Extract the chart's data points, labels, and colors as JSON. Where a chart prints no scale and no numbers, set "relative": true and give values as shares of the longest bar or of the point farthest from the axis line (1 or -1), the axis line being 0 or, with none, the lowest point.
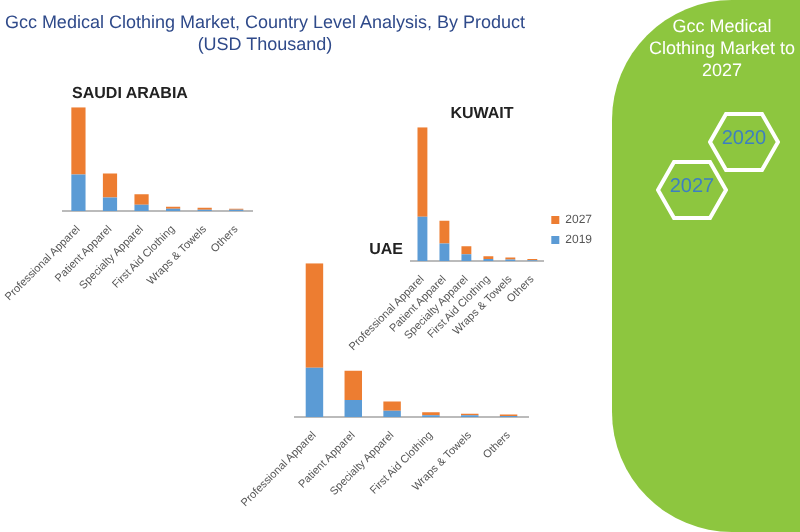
{
  "chart_data": [
    {
      "type": "other",
      "title": "Gcc Medical Clothing Market, Country Level Analysis, By Product (USD Thousand)"
    },
    {
      "type": "bar",
      "title": "SAUDI ARABIA",
      "relative": true,
      "stacked": true,
      "categories": [
        "Professional Apparel",
        "Patient Apparel",
        "Specialty Apparel",
        "First Aid Clothing",
        "Wraps & Towels",
        "Others"
      ],
      "series": [
        {
          "color": "#5b9bd5",
          "values": [
            0.35,
            0.13,
            0.06,
            0.02,
            0.01,
            0.01
          ]
        },
        {
          "color": "#ed7d31",
          "values": [
            0.65,
            0.23,
            0.1,
            0.02,
            0.02,
            0.01
          ]
        }
      ]
    },
    {
      "type": "bar",
      "title": "UAE",
      "relative": true,
      "stacked": true,
      "categories": [
        "Professional Apparel",
        "Patient Apparel",
        "Specialty Apparel",
        "First Aid Clothing",
        "Wraps & Towels",
        "Others"
      ],
      "series": [
        {
          "color": "#5b9bd5",
          "values": [
            0.32,
            0.11,
            0.04,
            0.01,
            0.01,
            0.005
          ]
        },
        {
          "color": "#ed7d31",
          "values": [
            0.68,
            0.19,
            0.06,
            0.02,
            0.01,
            0.01
          ]
        }
      ]
    },
    {
      "type": "bar",
      "title": "KUWAIT",
      "relative": true,
      "stacked": true,
      "legend": "right",
      "categories": [
        "Professional Apparel",
        "Patient Apparel",
        "Specialty Apparel",
        "First Aid Clothing",
        "Wraps & Towels",
        "Others"
      ],
      "series": [
        {
          "name": "2019",
          "color": "#5b9bd5",
          "values": [
            0.33,
            0.13,
            0.05,
            0.015,
            0.01,
            0.005
          ]
        },
        {
          "name": "2027",
          "color": "#ed7d31",
          "values": [
            0.67,
            0.17,
            0.06,
            0.02,
            0.015,
            0.01
          ]
        }
      ]
    },
    {
      "type": "other",
      "title": "Gcc Medical Clothing Market to 2027",
      "annotations": [
        "2027",
        "2020"
      ]
    }
  ]
}
